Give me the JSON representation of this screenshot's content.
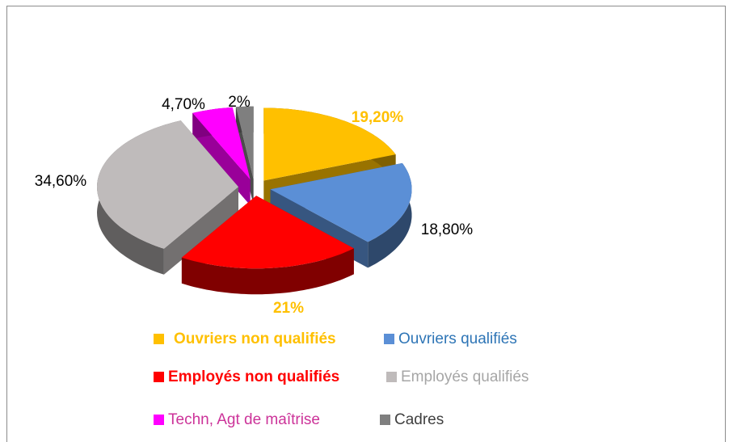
{
  "chart_data": {
    "type": "pie3d",
    "categories": [
      "Ouvriers non qualifiés",
      "Ouvriers qualifiés",
      "Employés non qualifiés",
      "Employés qualifiés",
      "Techn, Agt de maîtrise",
      "Cadres"
    ],
    "values": [
      19.2,
      18.8,
      21,
      34.6,
      4.7,
      2
    ],
    "value_labels": [
      "19,20%",
      "18,80%",
      "21%",
      "34,60%",
      "4,70%",
      "2%"
    ],
    "colors": [
      "#FFC000",
      "#5B8FD6",
      "#FF0000",
      "#BFBBBB",
      "#FF00FF",
      "#7F7F7F"
    ],
    "label_colors": [
      "#FFC000",
      "#000000",
      "#FFC000",
      "#000000",
      "#000000",
      "#000000"
    ],
    "legend_text_colors": [
      "#FFC000",
      "#2E75B6",
      "#FF0000",
      "#A6A6A6",
      "#CC3399",
      "#404040"
    ],
    "legend": "bottom"
  }
}
